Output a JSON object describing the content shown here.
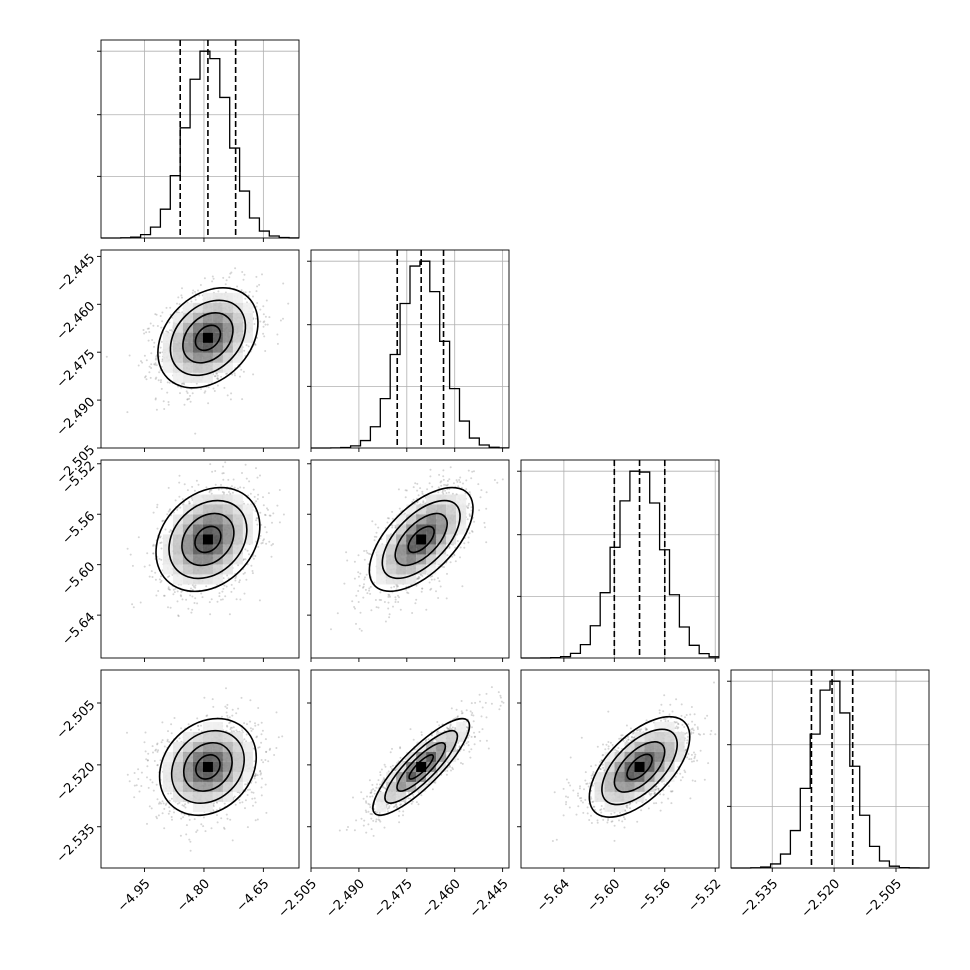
{
  "chart_data": {
    "type": "corner",
    "title": "",
    "grid": true,
    "parameters": [
      {
        "ticks": [
          -4.95,
          -4.8,
          -4.65
        ],
        "tick_labels": [
          "−4.95",
          "−4.80",
          "−4.65"
        ],
        "range": [
          -5.06,
          -4.56
        ],
        "mean": -4.79,
        "sigma": 0.055,
        "quantiles": [
          -4.86,
          -4.79,
          -4.72
        ],
        "hist_ymax": 1.06
      },
      {
        "ticks": [
          -2.505,
          -2.49,
          -2.475,
          -2.46,
          -2.445
        ],
        "tick_labels": [
          "−2.505",
          "−2.490",
          "−2.475",
          "−2.460",
          "−2.445"
        ],
        "range": [
          -2.505,
          -2.443
        ],
        "mean": -2.4705,
        "sigma": 0.0068,
        "quantiles": [
          -2.478,
          -2.4705,
          -2.4635
        ],
        "hist_ymax": 1.06
      },
      {
        "ticks": [
          -5.64,
          -5.6,
          -5.56,
          -5.52
        ],
        "tick_labels": [
          "−5.64",
          "−5.60",
          "−5.56",
          "−5.52"
        ],
        "range": [
          -5.674,
          -5.517
        ],
        "mean": -5.58,
        "sigma": 0.0185,
        "quantiles": [
          -5.6,
          -5.58,
          -5.56
        ],
        "hist_ymax": 1.06
      },
      {
        "ticks": [
          -2.535,
          -2.52,
          -2.505
        ],
        "tick_labels": [
          "−2.535",
          "−2.520",
          "−2.505"
        ],
        "range": [
          -2.545,
          -2.497
        ],
        "mean": -2.5205,
        "sigma": 0.0049,
        "quantiles": [
          -2.5255,
          -2.5205,
          -2.5155
        ],
        "hist_ymax": 1.06
      }
    ],
    "correlations": [
      [
        0,
        1,
        0.3
      ],
      [
        0,
        2,
        0.25
      ],
      [
        1,
        2,
        0.6
      ],
      [
        0,
        3,
        0.2
      ],
      [
        1,
        3,
        0.85
      ],
      [
        2,
        3,
        0.6
      ]
    ],
    "histogram_bins": 20,
    "contour_levels_sigma": [
      0.5,
      1.0,
      1.5,
      2.0
    ],
    "colors": {
      "contour": "#000000",
      "scatter": "#888888",
      "grid": "#b0b0b0",
      "quantile_line": "#000000"
    }
  }
}
